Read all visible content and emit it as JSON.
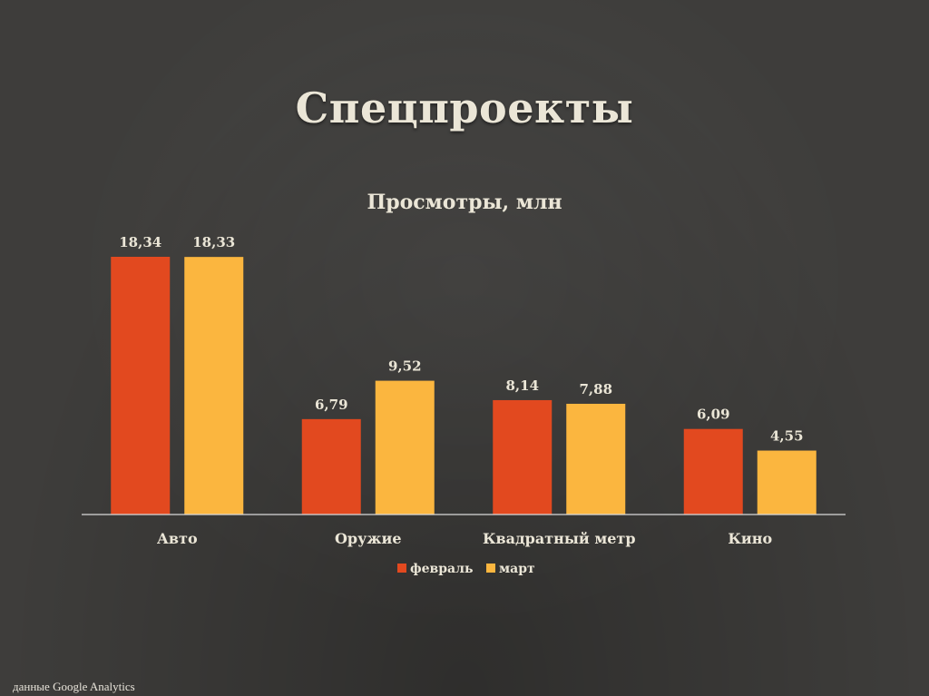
{
  "slide": {
    "title": "Спецпроекты",
    "source_prefix": "данные",
    "source_name": "Google Analytics"
  },
  "colors": {
    "background": "#3e3d3b",
    "axis": "#d9d9d9",
    "text": "#ebe6d7"
  },
  "chart_data": {
    "type": "bar",
    "title": "Просмотры, млн",
    "xlabel": "",
    "ylabel": "",
    "categories": [
      "Авто",
      "Оружие",
      "Квадратный метр",
      "Кино"
    ],
    "series": [
      {
        "name": "февраль",
        "color": "#e2491f",
        "values": [
          18.34,
          6.79,
          8.14,
          6.09
        ],
        "labels": [
          "18,34",
          "6,79",
          "8,14",
          "6,09"
        ]
      },
      {
        "name": "март",
        "color": "#fbb63f",
        "values": [
          18.33,
          9.52,
          7.88,
          4.55
        ],
        "labels": [
          "18,33",
          "9,52",
          "7,88",
          "4,55"
        ]
      }
    ],
    "ylim": [
      0,
      18.34
    ],
    "grid": false,
    "legend_position": "bottom",
    "data_labels": true
  }
}
